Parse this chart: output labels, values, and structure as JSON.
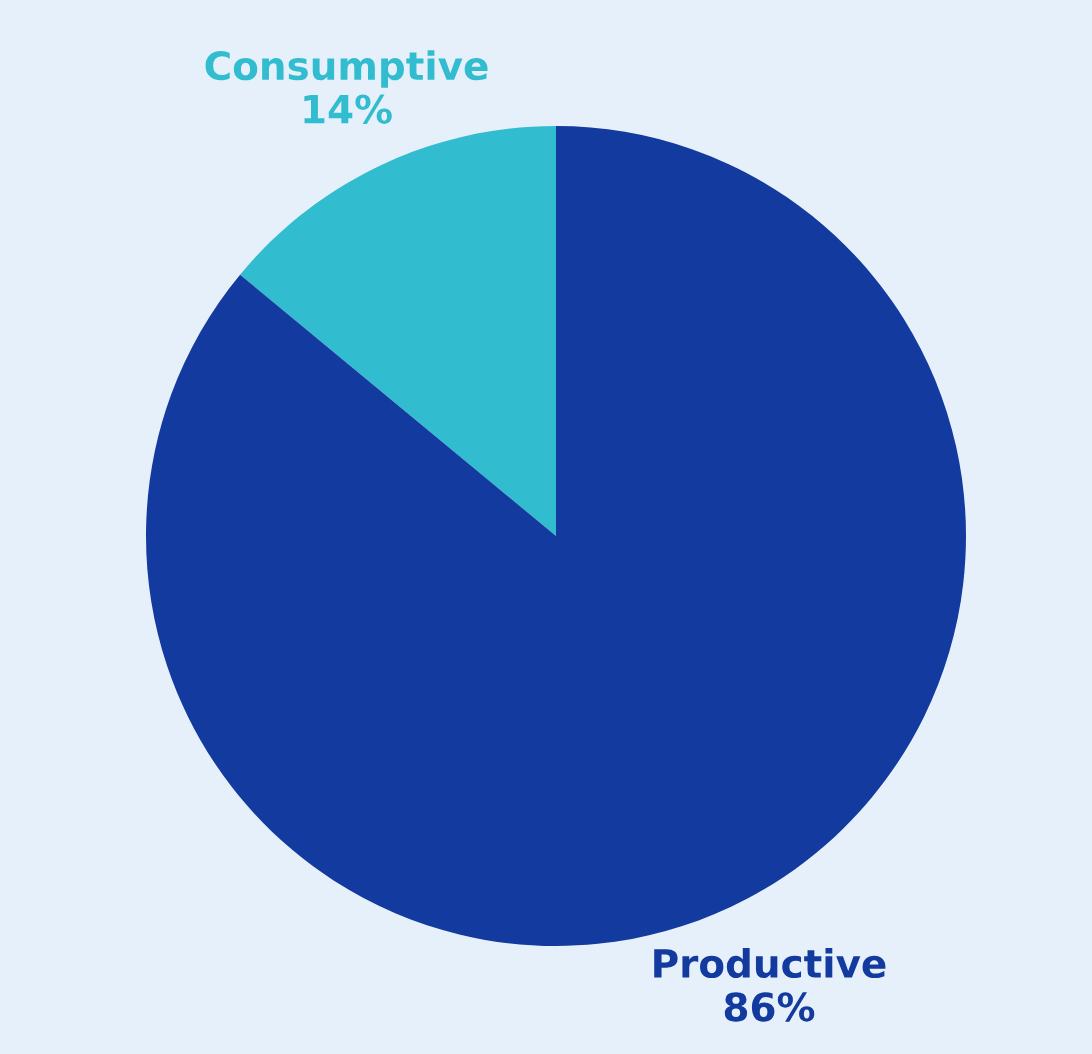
{
  "chart_data": {
    "type": "pie",
    "categories": [
      "Consumptive",
      "Productive"
    ],
    "values": [
      14,
      86
    ],
    "colors": [
      "#31bccf",
      "#133a9e"
    ],
    "value_labels": [
      "14%",
      "86%"
    ]
  }
}
